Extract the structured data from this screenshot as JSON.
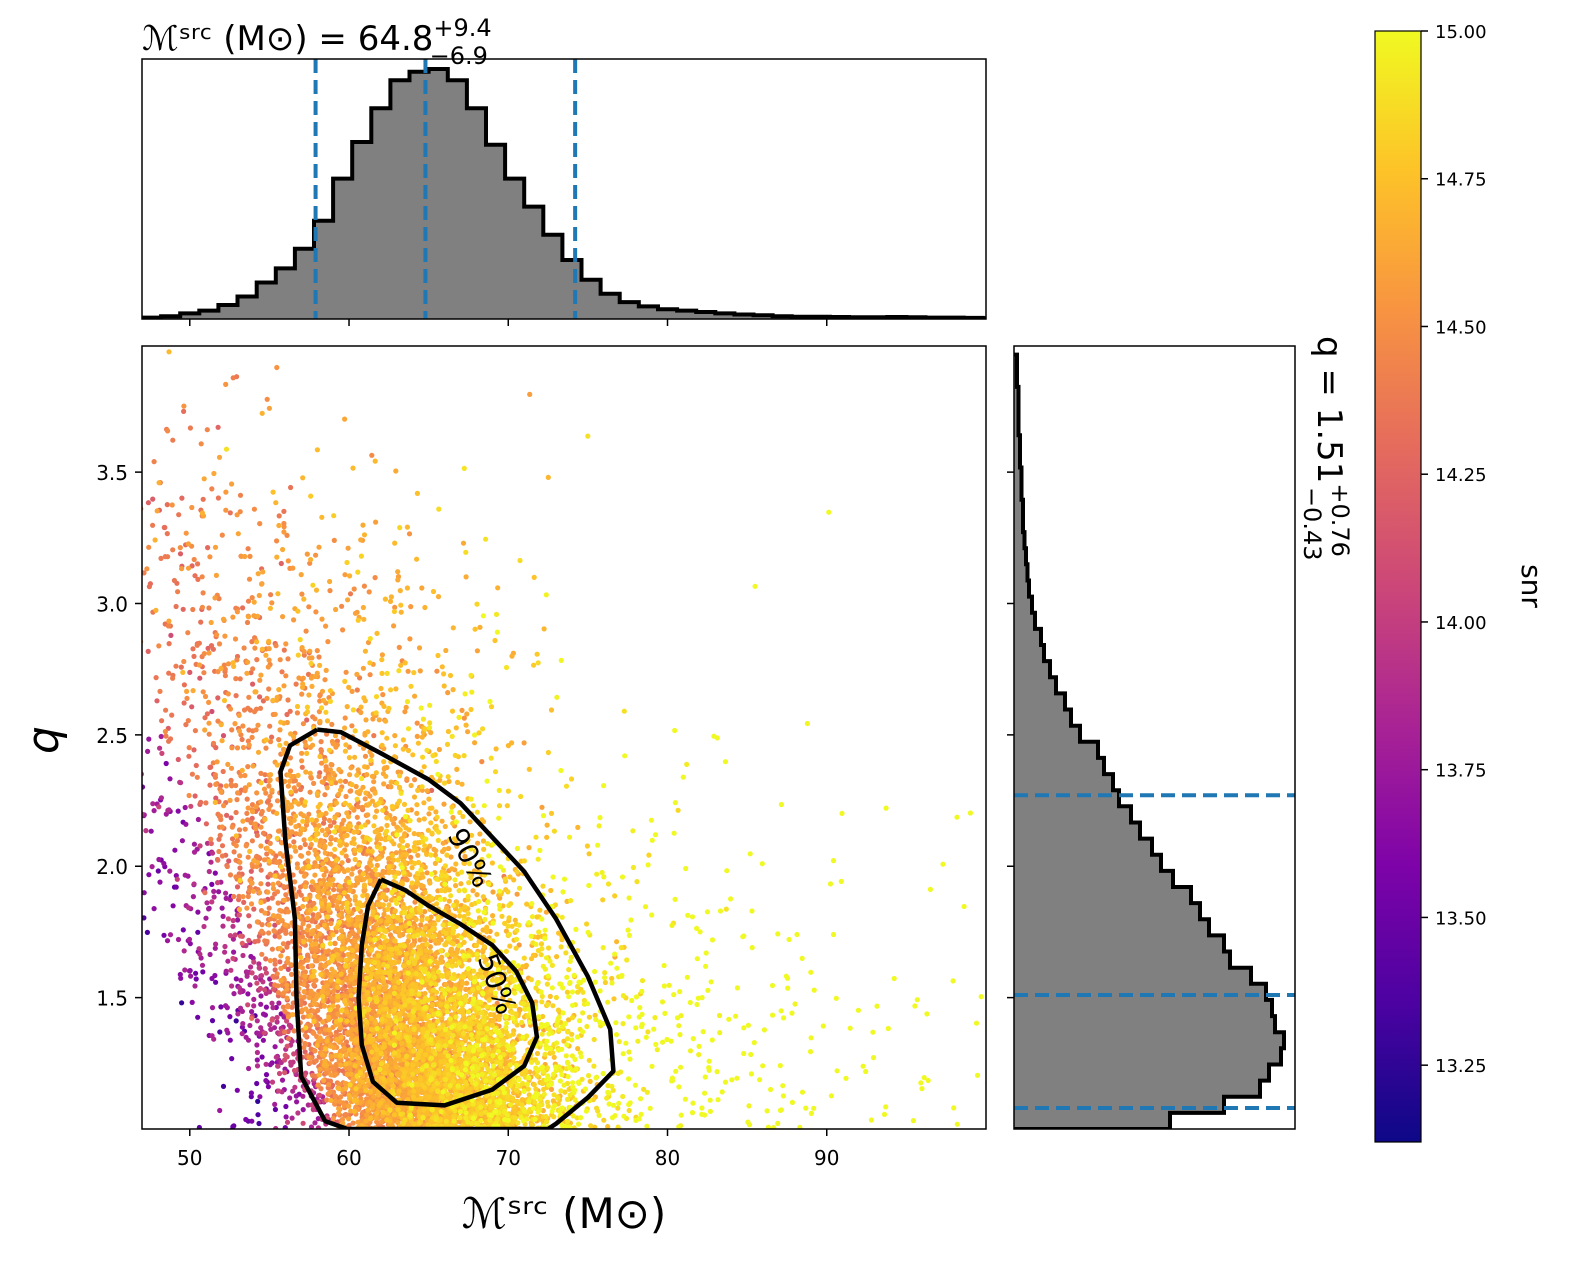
{
  "chart_data": {
    "type": "scatter",
    "layout_kind": "corner plot with marginal histograms",
    "xlabel": "ℳˢʳᶜ (M⊙)",
    "ylabel": "q",
    "x_ticks": [
      "50",
      "60",
      "70",
      "80",
      "90"
    ],
    "y_ticks": [
      "1.5",
      "2.0",
      "2.5",
      "3.0",
      "3.5"
    ],
    "xlim": [
      47,
      100
    ],
    "ylim": [
      1.0,
      3.98
    ],
    "top_title": {
      "name": "ℳˢʳᶜ (M⊙) = 64.8",
      "sup": "+9.4",
      "sub": "−6.9"
    },
    "right_title": {
      "name": "q = 1.51",
      "sup": "+0.76",
      "sub": "−0.43"
    },
    "colorbar": {
      "label": "snr",
      "range": [
        13.12,
        15.0
      ],
      "ticks": [
        "13.25",
        "13.50",
        "13.75",
        "14.00",
        "14.25",
        "14.50",
        "14.75",
        "15.00"
      ],
      "colormap": "plasma"
    },
    "contours": [
      {
        "label": "90%",
        "points": [
          [
            58.0,
            2.52
          ],
          [
            59.5,
            2.51
          ],
          [
            62,
            2.43
          ],
          [
            65,
            2.33
          ],
          [
            67,
            2.24
          ],
          [
            69,
            2.11
          ],
          [
            71,
            1.98
          ],
          [
            73,
            1.8
          ],
          [
            75,
            1.58
          ],
          [
            76.4,
            1.38
          ],
          [
            76.6,
            1.22
          ],
          [
            75,
            1.12
          ],
          [
            73,
            1.02
          ],
          [
            72.5,
            1.0
          ],
          [
            59.9,
            1.0
          ],
          [
            58.5,
            1.03
          ],
          [
            57,
            1.2
          ],
          [
            56.7,
            1.5
          ],
          [
            56.6,
            1.8
          ],
          [
            56,
            2.1
          ],
          [
            55.7,
            2.36
          ],
          [
            56.3,
            2.46
          ],
          [
            58.0,
            2.52
          ]
        ]
      },
      {
        "label": "50%",
        "points": [
          [
            62,
            1.95
          ],
          [
            63.5,
            1.91
          ],
          [
            65,
            1.85
          ],
          [
            67,
            1.78
          ],
          [
            69,
            1.7
          ],
          [
            70.5,
            1.6
          ],
          [
            71.5,
            1.48
          ],
          [
            71.8,
            1.35
          ],
          [
            71,
            1.24
          ],
          [
            69,
            1.15
          ],
          [
            66,
            1.09
          ],
          [
            63,
            1.1
          ],
          [
            61.5,
            1.18
          ],
          [
            60.8,
            1.32
          ],
          [
            60.6,
            1.5
          ],
          [
            60.8,
            1.7
          ],
          [
            61.2,
            1.85
          ],
          [
            62,
            1.95
          ]
        ]
      }
    ],
    "top_hist": {
      "bin_start": 47,
      "bin_width": 1.2,
      "counts": [
        0.5,
        1,
        2,
        3,
        5,
        8,
        13,
        18,
        25,
        35,
        50,
        63,
        75,
        85,
        88,
        89,
        85,
        75,
        62,
        50,
        40,
        30,
        21,
        14,
        9,
        6,
        4.5,
        3.5,
        3,
        2.5,
        2,
        1.6,
        1.3,
        1,
        0.8,
        0.8,
        0.7,
        0.6,
        0.6,
        0.7,
        0.6,
        0.5,
        0.5,
        0.4,
        0.3
      ],
      "quantile_lines": [
        57.9,
        64.8,
        74.2
      ]
    },
    "right_hist": {
      "bin_start": 1.0,
      "bin_width": 0.0614,
      "counts": [
        52,
        70,
        82,
        85,
        89,
        90,
        87,
        86,
        84,
        79,
        72,
        70,
        65,
        62,
        59,
        53,
        49,
        46,
        42,
        39,
        35,
        33,
        30,
        28,
        22,
        19,
        17,
        14,
        12,
        10,
        9,
        7,
        6,
        5,
        4.5,
        4,
        3.5,
        3,
        3,
        2.5,
        2.5,
        2,
        2,
        1.5,
        1.5,
        1.5,
        1,
        1
      ],
      "quantile_lines": [
        1.08,
        1.51,
        2.27
      ]
    }
  }
}
